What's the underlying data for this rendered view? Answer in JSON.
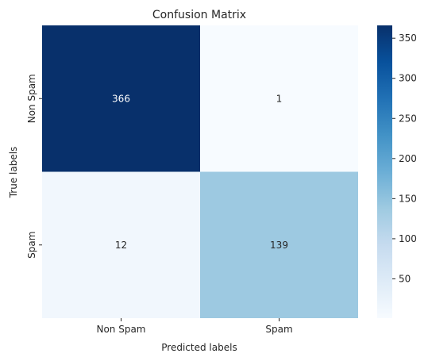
{
  "chart_data": {
    "type": "heatmap",
    "title": "Confusion Matrix",
    "xlabel": "Predicted labels",
    "ylabel": "True labels",
    "x_categories": [
      "Non Spam",
      "Spam"
    ],
    "y_categories": [
      "Non Spam",
      "Spam"
    ],
    "values": [
      [
        366,
        1
      ],
      [
        12,
        139
      ]
    ],
    "colormap": "Blues",
    "colorbar": {
      "min": 1,
      "max": 366,
      "ticks": [
        50,
        100,
        150,
        200,
        250,
        300,
        350
      ]
    },
    "colors": {
      "low": "#f7fbff",
      "high": "#08306b",
      "text_dark": "#262626",
      "text_light": "#ffffff"
    }
  }
}
